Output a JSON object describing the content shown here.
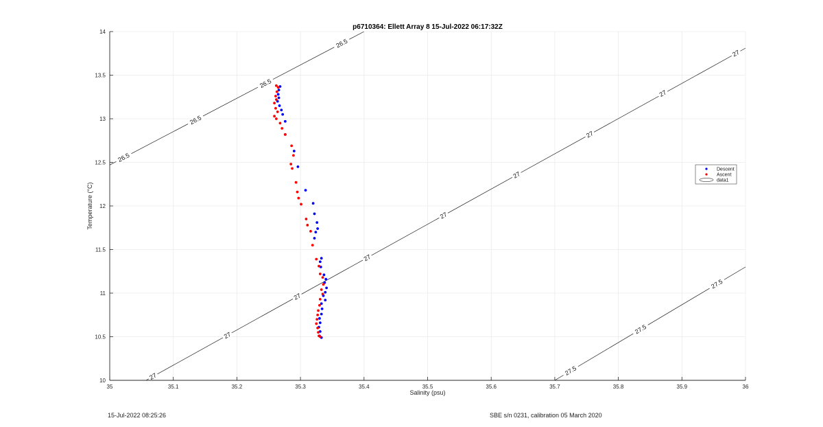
{
  "chart_data": {
    "type": "scatter",
    "title": "p6710364: Ellett Array 8 15-Jul-2022 06:17:32Z",
    "xlabel": "Salinity (psu)",
    "ylabel": "Temperature (°C)",
    "xlim": [
      35,
      36
    ],
    "ylim": [
      10,
      14
    ],
    "xticks": [
      "35",
      "35.1",
      "35.2",
      "35.3",
      "35.4",
      "35.5",
      "35.6",
      "35.7",
      "35.8",
      "35.9",
      "36"
    ],
    "yticks": [
      "10",
      "10.5",
      "11",
      "11.5",
      "12",
      "12.5",
      "13",
      "13.5",
      "14"
    ],
    "grid": true,
    "legend_position": "right",
    "legend": [
      "Descent",
      "Ascent",
      "data1"
    ],
    "series": [
      {
        "name": "Descent",
        "color": "#0000ff",
        "points": [
          [
            35.268,
            13.37
          ],
          [
            35.266,
            13.33
          ],
          [
            35.265,
            13.28
          ],
          [
            35.266,
            13.24
          ],
          [
            35.264,
            13.2
          ],
          [
            35.267,
            13.15
          ],
          [
            35.27,
            13.1
          ],
          [
            35.272,
            13.05
          ],
          [
            35.276,
            12.97
          ],
          [
            35.276,
            12.82
          ],
          [
            35.29,
            12.63
          ],
          [
            35.296,
            12.45
          ],
          [
            35.308,
            12.18
          ],
          [
            35.32,
            12.03
          ],
          [
            35.322,
            11.91
          ],
          [
            35.326,
            11.81
          ],
          [
            35.327,
            11.74
          ],
          [
            35.324,
            11.7
          ],
          [
            35.322,
            11.63
          ],
          [
            35.333,
            11.4
          ],
          [
            35.331,
            11.36
          ],
          [
            35.332,
            11.3
          ],
          [
            35.337,
            11.21
          ],
          [
            35.34,
            11.16
          ],
          [
            35.338,
            11.12
          ],
          [
            35.341,
            11.06
          ],
          [
            35.339,
            11.01
          ],
          [
            35.336,
            10.97
          ],
          [
            35.339,
            10.92
          ],
          [
            35.333,
            10.88
          ],
          [
            35.334,
            10.82
          ],
          [
            35.333,
            10.76
          ],
          [
            35.33,
            10.71
          ],
          [
            35.331,
            10.66
          ],
          [
            35.329,
            10.61
          ],
          [
            35.331,
            10.56
          ],
          [
            35.33,
            10.51
          ],
          [
            35.333,
            10.49
          ]
        ]
      },
      {
        "name": "Ascent",
        "color": "#ff0000",
        "points": [
          [
            35.262,
            13.38
          ],
          [
            35.265,
            13.36
          ],
          [
            35.263,
            13.31
          ],
          [
            35.261,
            13.26
          ],
          [
            35.262,
            13.22
          ],
          [
            35.259,
            13.18
          ],
          [
            35.261,
            13.12
          ],
          [
            35.264,
            13.08
          ],
          [
            35.259,
            13.03
          ],
          [
            35.262,
            13.0
          ],
          [
            35.268,
            12.95
          ],
          [
            35.271,
            12.89
          ],
          [
            35.276,
            12.82
          ],
          [
            35.286,
            12.69
          ],
          [
            35.289,
            12.58
          ],
          [
            35.285,
            12.48
          ],
          [
            35.287,
            12.43
          ],
          [
            35.293,
            12.27
          ],
          [
            35.295,
            12.16
          ],
          [
            35.297,
            12.09
          ],
          [
            35.301,
            12.02
          ],
          [
            35.309,
            11.85
          ],
          [
            35.311,
            11.78
          ],
          [
            35.316,
            11.71
          ],
          [
            35.319,
            11.55
          ],
          [
            35.325,
            11.39
          ],
          [
            35.329,
            11.31
          ],
          [
            35.331,
            11.22
          ],
          [
            35.335,
            11.18
          ],
          [
            35.336,
            11.1
          ],
          [
            35.333,
            11.04
          ],
          [
            35.335,
            10.99
          ],
          [
            35.331,
            10.93
          ],
          [
            35.33,
            10.86
          ],
          [
            35.328,
            10.8
          ],
          [
            35.327,
            10.75
          ],
          [
            35.326,
            10.7
          ],
          [
            35.325,
            10.65
          ],
          [
            35.327,
            10.6
          ],
          [
            35.328,
            10.55
          ],
          [
            35.329,
            10.51
          ],
          [
            35.331,
            10.5
          ]
        ]
      }
    ],
    "contours": [
      {
        "level": "26.5",
        "points": [
          [
            35.0,
            12.47
          ],
          [
            35.4,
            14.0
          ]
        ],
        "labels": [
          [
            35.022,
            12.555
          ],
          [
            35.135,
            12.985
          ],
          [
            35.245,
            13.405
          ],
          [
            35.365,
            13.865
          ]
        ]
      },
      {
        "level": "27",
        "points": [
          [
            35.057,
            10.0
          ],
          [
            36.0,
            13.81
          ]
        ],
        "labels": [
          [
            35.068,
            10.045
          ],
          [
            35.185,
            10.515
          ],
          [
            35.295,
            10.96
          ],
          [
            35.405,
            11.405
          ],
          [
            35.525,
            11.89
          ],
          [
            35.64,
            12.355
          ],
          [
            35.755,
            12.82
          ],
          [
            35.87,
            13.29
          ],
          [
            35.985,
            13.75
          ]
        ]
      },
      {
        "level": "27.5",
        "points": [
          [
            35.7,
            10.0
          ],
          [
            36.0,
            11.3
          ]
        ],
        "labels": [
          [
            35.725,
            10.11
          ],
          [
            35.835,
            10.585
          ],
          [
            35.955,
            11.105
          ]
        ]
      }
    ]
  },
  "footer": {
    "left": "15-Jul-2022 08:25:26",
    "right": "SBE s/n 0231, calibration 05 March 2020"
  }
}
